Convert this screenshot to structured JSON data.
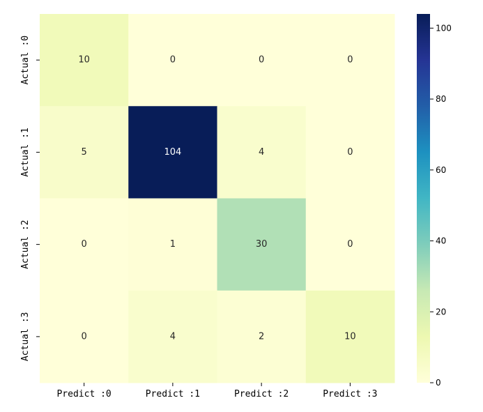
{
  "chart_data": {
    "type": "heatmap",
    "title": "",
    "xlabel": "",
    "ylabel": "",
    "x_tick_labels": [
      "Predict :0",
      "Predict :1",
      "Predict :2",
      "Predict :3"
    ],
    "y_tick_labels": [
      "Actual :0",
      "Actual :1",
      "Actual :2",
      "Actual :3"
    ],
    "matrix": [
      [
        10,
        0,
        0,
        0
      ],
      [
        5,
        104,
        4,
        0
      ],
      [
        0,
        1,
        30,
        0
      ],
      [
        0,
        4,
        2,
        10
      ]
    ],
    "colormap": "YlGnBu",
    "colorbar": {
      "vmin": 0,
      "vmax": 104,
      "ticks": [
        0,
        20,
        40,
        60,
        80,
        100
      ]
    }
  }
}
